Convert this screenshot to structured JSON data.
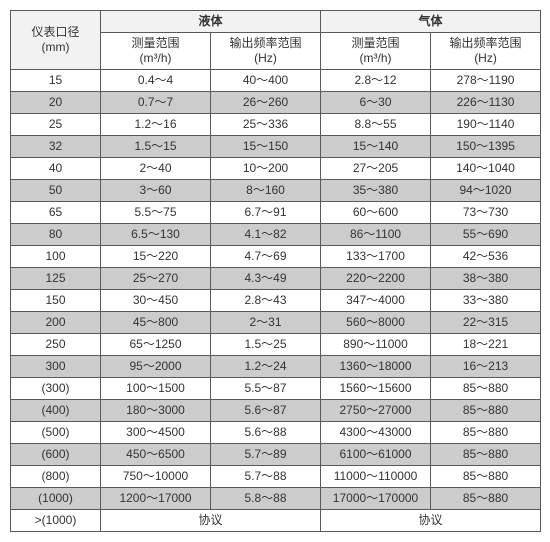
{
  "header": {
    "dia_label": "仪表口径",
    "dia_unit": "(mm)",
    "liquid": "液体",
    "gas": "气体",
    "meas_label": "测量范围",
    "meas_unit": "(m³/h)",
    "freq_label": "输出频率范围",
    "freq_unit": "(Hz)"
  },
  "rows": [
    {
      "dia": "15",
      "l_m": "0.4～4",
      "l_f": "40～400",
      "g_m": "2.8～12",
      "g_f": "278～1190",
      "shade": "light"
    },
    {
      "dia": "20",
      "l_m": "0.7～7",
      "l_f": "26～260",
      "g_m": "6～30",
      "g_f": "226～1130",
      "shade": "dark"
    },
    {
      "dia": "25",
      "l_m": "1.2～16",
      "l_f": "25～336",
      "g_m": "8.8～55",
      "g_f": "190～1140",
      "shade": "light"
    },
    {
      "dia": "32",
      "l_m": "1.5～15",
      "l_f": "15～150",
      "g_m": "15～140",
      "g_f": "150～1395",
      "shade": "dark"
    },
    {
      "dia": "40",
      "l_m": "2～40",
      "l_f": "10～200",
      "g_m": "27～205",
      "g_f": "140～1040",
      "shade": "light"
    },
    {
      "dia": "50",
      "l_m": "3～60",
      "l_f": "8～160",
      "g_m": "35～380",
      "g_f": "94～1020",
      "shade": "dark"
    },
    {
      "dia": "65",
      "l_m": "5.5～75",
      "l_f": "6.7～91",
      "g_m": "60～600",
      "g_f": "73～730",
      "shade": "light"
    },
    {
      "dia": "80",
      "l_m": "6.5～130",
      "l_f": "4.1～82",
      "g_m": "86～1100",
      "g_f": "55～690",
      "shade": "dark"
    },
    {
      "dia": "100",
      "l_m": "15～220",
      "l_f": "4.7～69",
      "g_m": "133～1700",
      "g_f": "42～536",
      "shade": "light"
    },
    {
      "dia": "125",
      "l_m": "25～270",
      "l_f": "4.3～49",
      "g_m": "220～2200",
      "g_f": "38～380",
      "shade": "dark"
    },
    {
      "dia": "150",
      "l_m": "30～450",
      "l_f": "2.8～43",
      "g_m": "347～4000",
      "g_f": "33～380",
      "shade": "light"
    },
    {
      "dia": "200",
      "l_m": "45～800",
      "l_f": "2～31",
      "g_m": "560～8000",
      "g_f": "22～315",
      "shade": "dark"
    },
    {
      "dia": "250",
      "l_m": "65～1250",
      "l_f": "1.5～25",
      "g_m": "890～11000",
      "g_f": "18～221",
      "shade": "light"
    },
    {
      "dia": "300",
      "l_m": "95～2000",
      "l_f": "1.2～24",
      "g_m": "1360～18000",
      "g_f": "16～213",
      "shade": "dark"
    },
    {
      "dia": "(300)",
      "l_m": "100～1500",
      "l_f": "5.5～87",
      "g_m": "1560～15600",
      "g_f": "85～880",
      "shade": "light"
    },
    {
      "dia": "(400)",
      "l_m": "180～3000",
      "l_f": "5.6～87",
      "g_m": "2750～27000",
      "g_f": "85～880",
      "shade": "dark"
    },
    {
      "dia": "(500)",
      "l_m": "300～4500",
      "l_f": "5.6～88",
      "g_m": "4300～43000",
      "g_f": "85～880",
      "shade": "light"
    },
    {
      "dia": "(600)",
      "l_m": "450～6500",
      "l_f": "5.7～89",
      "g_m": "6100～61000",
      "g_f": "85～880",
      "shade": "dark"
    },
    {
      "dia": "(800)",
      "l_m": "750～10000",
      "l_f": "5.7～88",
      "g_m": "11000～110000",
      "g_f": "85～880",
      "shade": "light"
    },
    {
      "dia": "(1000)",
      "l_m": "1200～17000",
      "l_f": "5.8～88",
      "g_m": "17000～170000",
      "g_f": "85～880",
      "shade": "dark"
    }
  ],
  "footer": {
    "dia": ">(1000)",
    "liquid": "协议",
    "gas": "协议"
  }
}
